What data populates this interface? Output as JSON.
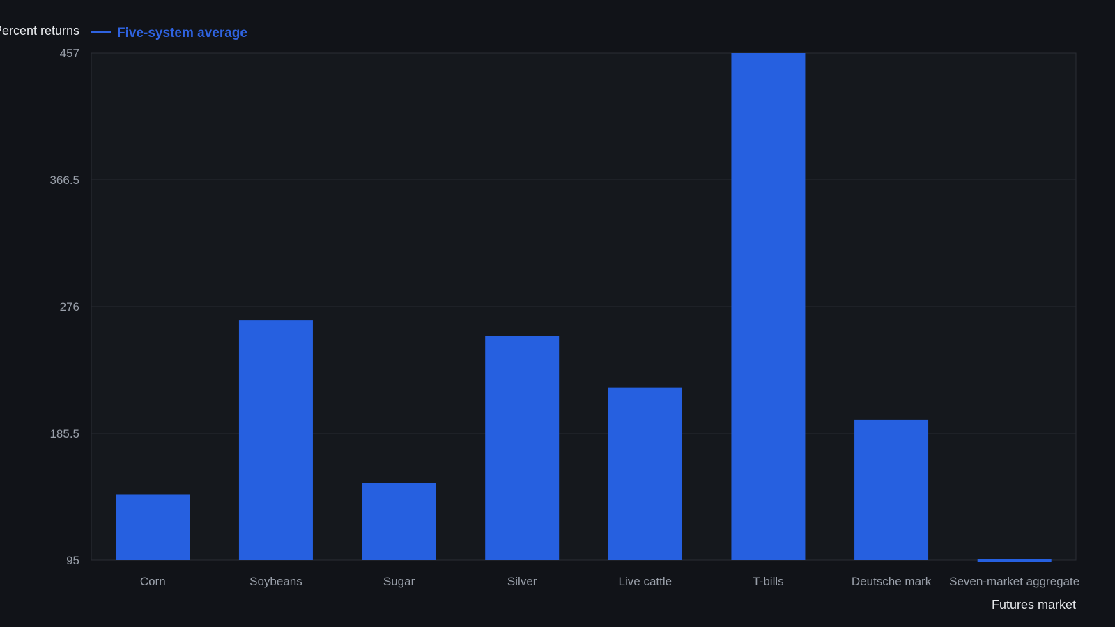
{
  "chart_data": {
    "type": "bar",
    "ylabel": "Percent returns",
    "xlabel": "Futures market",
    "categories": [
      "Corn",
      "Soybeans",
      "Sugar",
      "Silver",
      "Live cattle",
      "T-bills",
      "Deutsche mark",
      "Seven-market aggregate"
    ],
    "series": [
      {
        "name": "Five-system average",
        "values": [
          142,
          266,
          150,
          255,
          218,
          457,
          195,
          94
        ]
      }
    ],
    "ylim": [
      95,
      457
    ],
    "yticks": [
      "95",
      "185.5",
      "276",
      "366.5",
      "457"
    ],
    "grid": true,
    "legend": "top-left",
    "colors": {
      "bar": "#2660e0",
      "background": "#111318",
      "plot_background": "#15181d",
      "grid": "#262a31"
    }
  }
}
